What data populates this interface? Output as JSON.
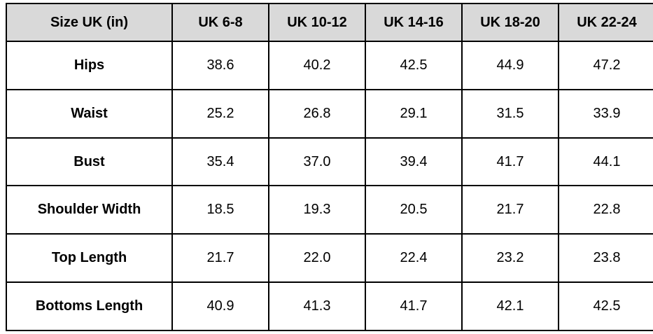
{
  "colors": {
    "header_bg": "#d9d9d9",
    "border": "#000000",
    "text": "#000000",
    "background": "#ffffff"
  },
  "table": {
    "header": [
      "Size UK (in)",
      "UK 6-8",
      "UK 10-12",
      "UK 14-16",
      "UK 18-20",
      "UK 22-24"
    ],
    "rows": [
      {
        "label": "Hips",
        "values": [
          "38.6",
          "40.2",
          "42.5",
          "44.9",
          "47.2"
        ]
      },
      {
        "label": "Waist",
        "values": [
          "25.2",
          "26.8",
          "29.1",
          "31.5",
          "33.9"
        ]
      },
      {
        "label": "Bust",
        "values": [
          "35.4",
          "37.0",
          "39.4",
          "41.7",
          "44.1"
        ]
      },
      {
        "label": "Shoulder Width",
        "values": [
          "18.5",
          "19.3",
          "20.5",
          "21.7",
          "22.8"
        ]
      },
      {
        "label": "Top Length",
        "values": [
          "21.7",
          "22.0",
          "22.4",
          "23.2",
          "23.8"
        ]
      },
      {
        "label": "Bottoms Length",
        "values": [
          "40.9",
          "41.3",
          "41.7",
          "42.1",
          "42.5"
        ]
      }
    ]
  },
  "chart_data": {
    "type": "table",
    "title": "Size UK (in)",
    "categories": [
      "UK 6-8",
      "UK 10-12",
      "UK 14-16",
      "UK 18-20",
      "UK 22-24"
    ],
    "series": [
      {
        "name": "Hips",
        "values": [
          38.6,
          40.2,
          42.5,
          44.9,
          47.2
        ]
      },
      {
        "name": "Waist",
        "values": [
          25.2,
          26.8,
          29.1,
          31.5,
          33.9
        ]
      },
      {
        "name": "Bust",
        "values": [
          35.4,
          37.0,
          39.4,
          41.7,
          44.1
        ]
      },
      {
        "name": "Shoulder Width",
        "values": [
          18.5,
          19.3,
          20.5,
          21.7,
          22.8
        ]
      },
      {
        "name": "Top Length",
        "values": [
          21.7,
          22.0,
          22.4,
          23.2,
          23.8
        ]
      },
      {
        "name": "Bottoms Length",
        "values": [
          40.9,
          41.3,
          41.7,
          42.1,
          42.5
        ]
      }
    ]
  }
}
